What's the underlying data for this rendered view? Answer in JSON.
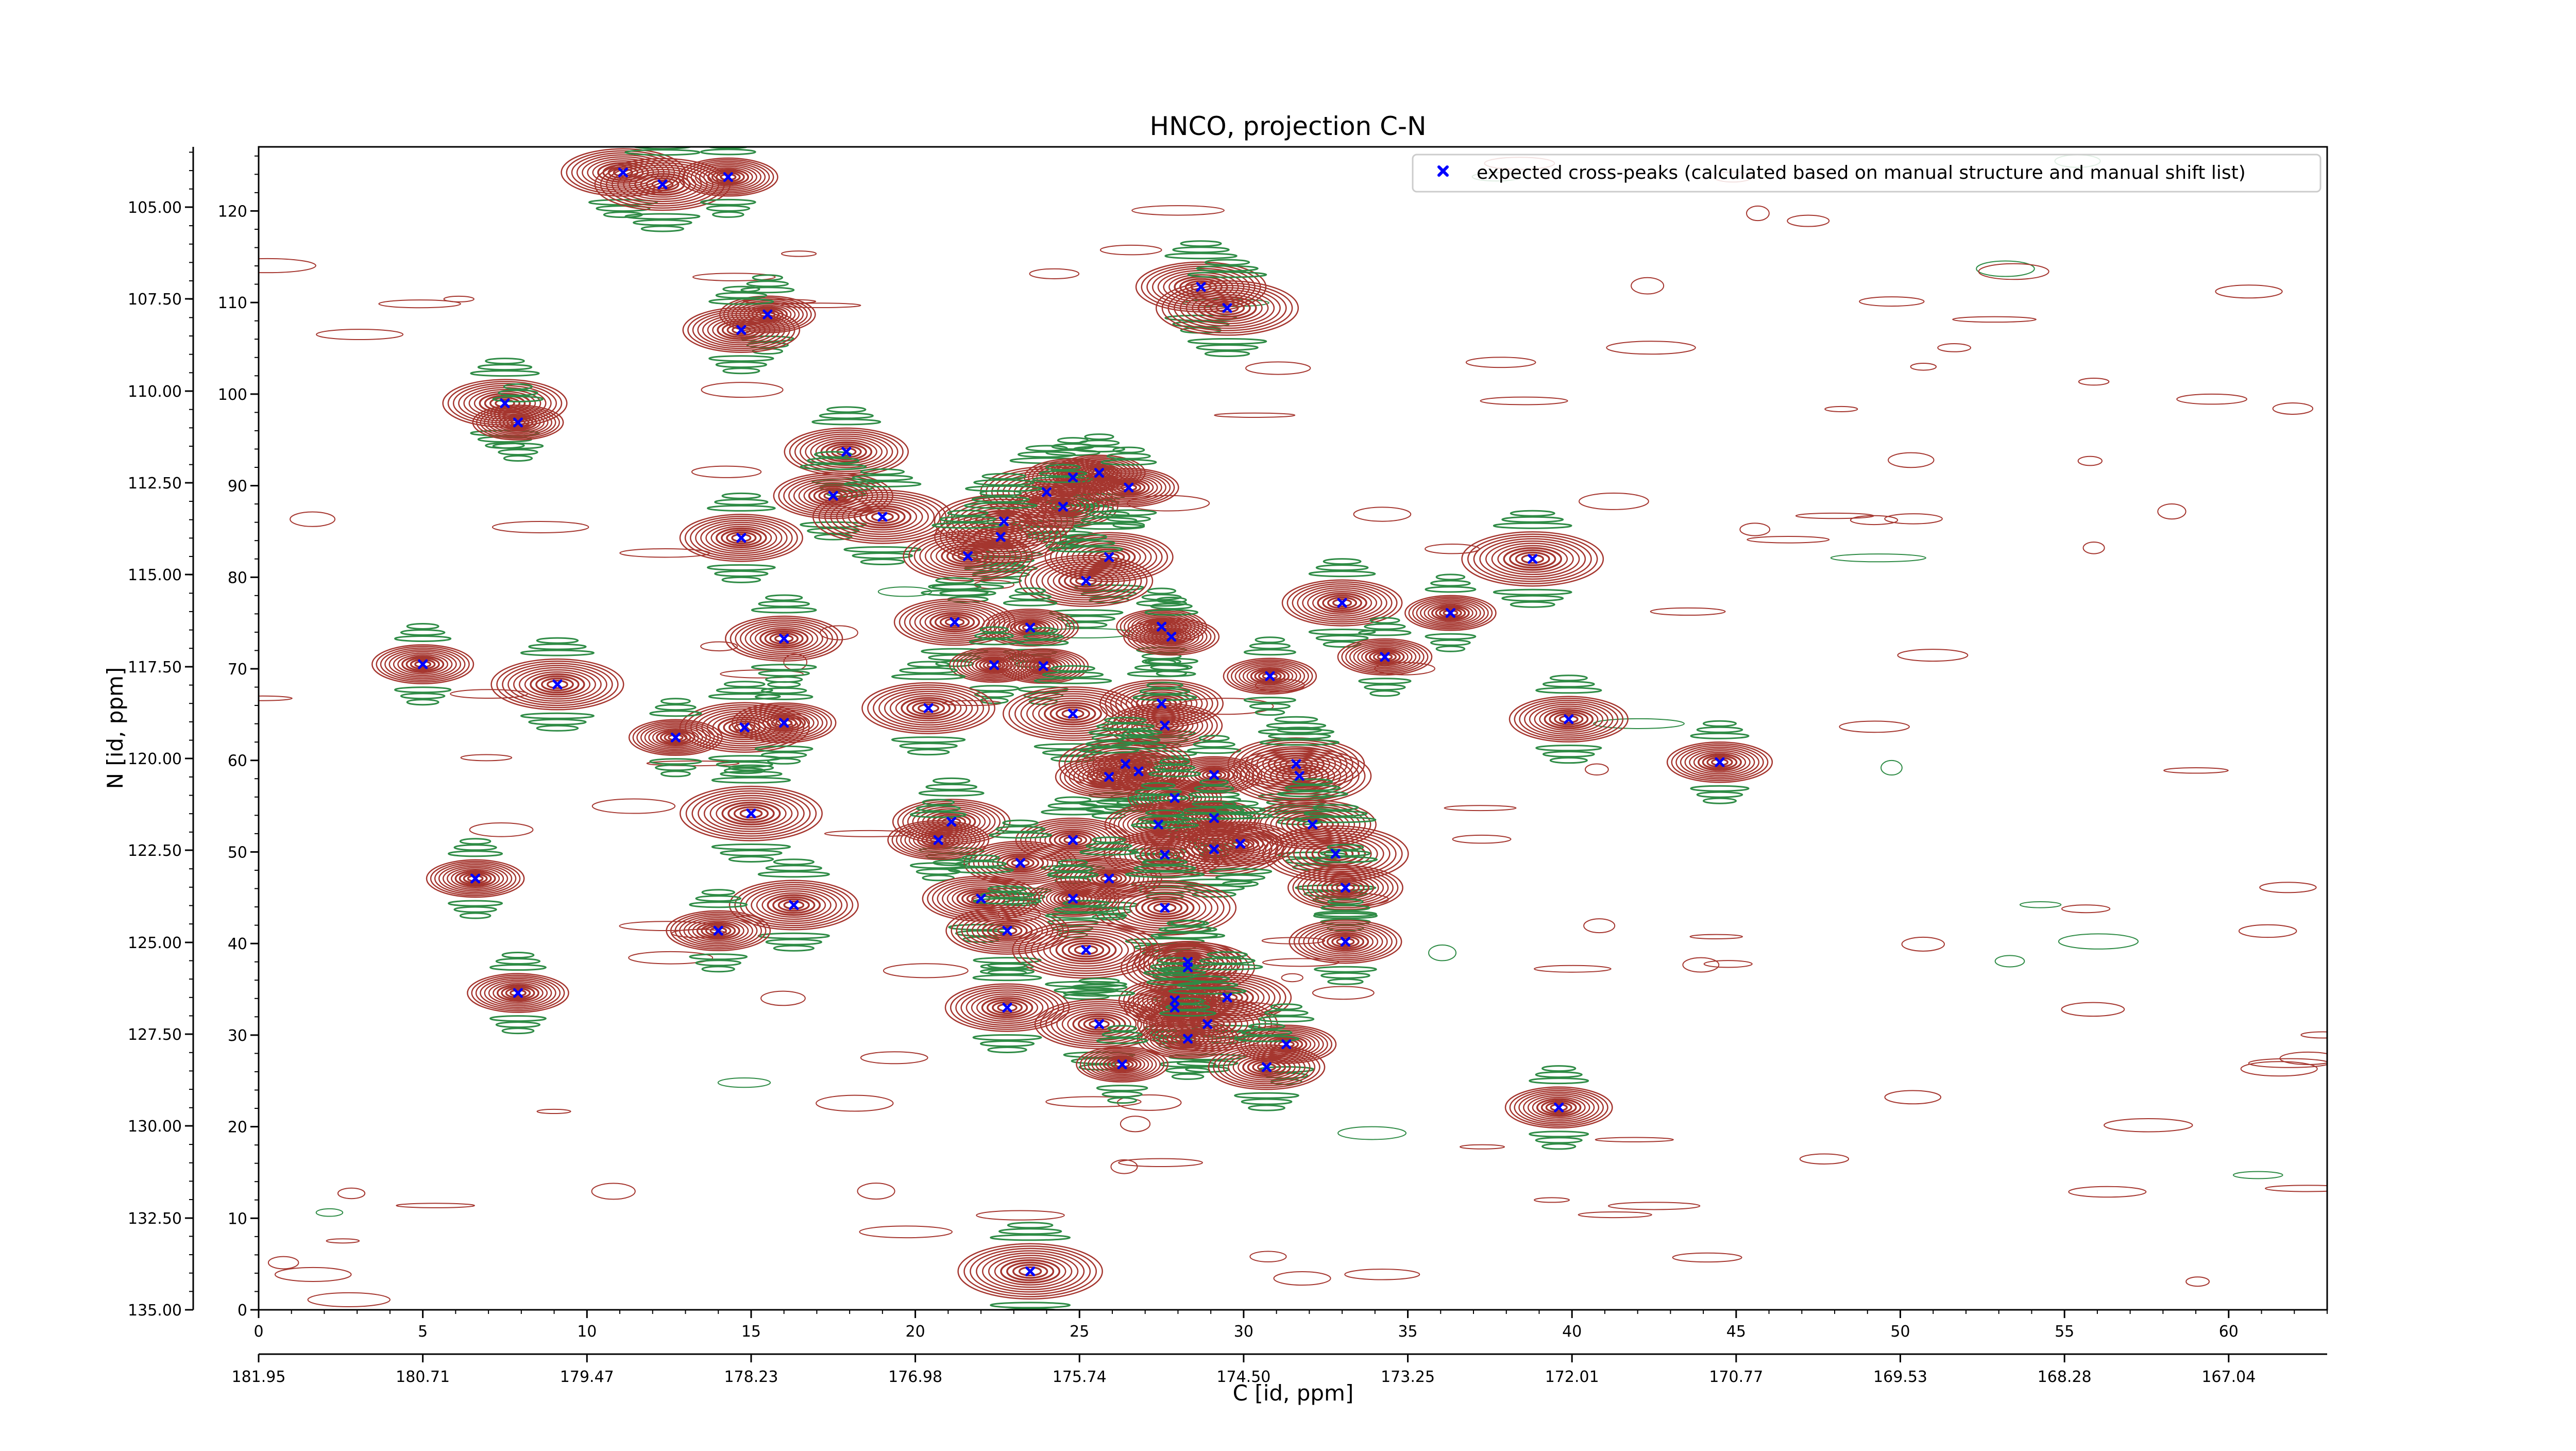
{
  "chart_data": {
    "type": "scatter",
    "subtype": "2D NMR contour spectrum with peak markers",
    "title": "HNCO, projection C-N",
    "xlabel": "C [id, ppm]",
    "ylabel": "N [id, ppm]",
    "x_index_ticks": [
      "0",
      "5",
      "10",
      "15",
      "20",
      "25",
      "30",
      "35",
      "40",
      "45",
      "50",
      "55",
      "60"
    ],
    "x_ppm_ticks": [
      "181.95",
      "180.71",
      "179.47",
      "178.23",
      "176.98",
      "175.74",
      "174.50",
      "173.25",
      "172.01",
      "170.77",
      "169.53",
      "168.28",
      "167.04"
    ],
    "y_index_ticks": [
      "0",
      "10",
      "20",
      "30",
      "40",
      "50",
      "60",
      "70",
      "80",
      "90",
      "100",
      "110",
      "120"
    ],
    "y_ppm_ticks": [
      "135.00",
      "132.50",
      "130.00",
      "127.50",
      "125.00",
      "122.50",
      "120.00",
      "117.50",
      "115.00",
      "112.50",
      "110.00",
      "107.50",
      "105.00"
    ],
    "xlim": [
      0,
      63
    ],
    "ylim": [
      0,
      127
    ],
    "grid": false,
    "legend_position": "top-right",
    "contour_colors": {
      "positive": "#a5362f",
      "negative": "#2e8b45"
    },
    "marker_color": "#0000ff",
    "series": [
      {
        "name": "expected cross-peaks (calculated based on manual structure and manual shift list)",
        "marker": "x",
        "points": [
          [
            11.1,
            124.2
          ],
          [
            12.3,
            122.9
          ],
          [
            14.3,
            123.7
          ],
          [
            28.7,
            111.7
          ],
          [
            29.5,
            109.4
          ],
          [
            15.5,
            108.7
          ],
          [
            14.7,
            107.0
          ],
          [
            7.5,
            99.0
          ],
          [
            7.9,
            96.9
          ],
          [
            17.9,
            93.7
          ],
          [
            17.5,
            88.9
          ],
          [
            19.0,
            86.6
          ],
          [
            24.0,
            89.3
          ],
          [
            24.8,
            90.9
          ],
          [
            25.6,
            91.4
          ],
          [
            24.5,
            87.7
          ],
          [
            22.7,
            86.1
          ],
          [
            26.5,
            89.8
          ],
          [
            14.7,
            84.3
          ],
          [
            22.6,
            84.4
          ],
          [
            21.6,
            82.3
          ],
          [
            25.9,
            82.2
          ],
          [
            25.2,
            79.6
          ],
          [
            38.8,
            82.0
          ],
          [
            33.0,
            77.2
          ],
          [
            36.3,
            76.1
          ],
          [
            21.2,
            75.1
          ],
          [
            23.5,
            74.5
          ],
          [
            27.5,
            74.6
          ],
          [
            27.8,
            73.5
          ],
          [
            16.0,
            73.3
          ],
          [
            5.0,
            70.5
          ],
          [
            9.1,
            68.3
          ],
          [
            22.4,
            70.4
          ],
          [
            23.9,
            70.3
          ],
          [
            30.8,
            69.2
          ],
          [
            34.3,
            71.3
          ],
          [
            27.5,
            66.2
          ],
          [
            27.6,
            63.8
          ],
          [
            20.4,
            65.7
          ],
          [
            24.8,
            65.1
          ],
          [
            39.9,
            64.5
          ],
          [
            14.8,
            63.6
          ],
          [
            16.0,
            64.1
          ],
          [
            12.7,
            62.5
          ],
          [
            26.4,
            59.6
          ],
          [
            26.8,
            58.8
          ],
          [
            25.9,
            58.2
          ],
          [
            29.1,
            58.4
          ],
          [
            31.6,
            59.6
          ],
          [
            31.7,
            58.3
          ],
          [
            44.5,
            59.8
          ],
          [
            27.9,
            55.9
          ],
          [
            29.1,
            53.7
          ],
          [
            27.4,
            53.0
          ],
          [
            15.0,
            54.2
          ],
          [
            21.1,
            53.3
          ],
          [
            20.7,
            51.3
          ],
          [
            24.8,
            51.3
          ],
          [
            32.1,
            53.0
          ],
          [
            29.1,
            50.3
          ],
          [
            29.9,
            50.9
          ],
          [
            32.8,
            49.8
          ],
          [
            23.2,
            48.8
          ],
          [
            27.6,
            49.7
          ],
          [
            25.9,
            47.1
          ],
          [
            6.6,
            47.1
          ],
          [
            33.1,
            46.1
          ],
          [
            22.0,
            44.9
          ],
          [
            24.8,
            44.9
          ],
          [
            16.3,
            44.2
          ],
          [
            27.6,
            43.9
          ],
          [
            14.0,
            41.4
          ],
          [
            22.8,
            41.4
          ],
          [
            25.2,
            39.3
          ],
          [
            33.1,
            40.2
          ],
          [
            28.3,
            38.0
          ],
          [
            28.3,
            37.4
          ],
          [
            7.9,
            34.6
          ],
          [
            22.8,
            33.0
          ],
          [
            27.9,
            33.8
          ],
          [
            29.5,
            34.1
          ],
          [
            27.9,
            33.0
          ],
          [
            25.6,
            31.2
          ],
          [
            28.9,
            31.2
          ],
          [
            28.3,
            29.6
          ],
          [
            31.3,
            29.0
          ],
          [
            26.3,
            26.8
          ],
          [
            30.7,
            26.5
          ],
          [
            39.6,
            22.1
          ],
          [
            23.5,
            4.2
          ]
        ]
      }
    ]
  }
}
